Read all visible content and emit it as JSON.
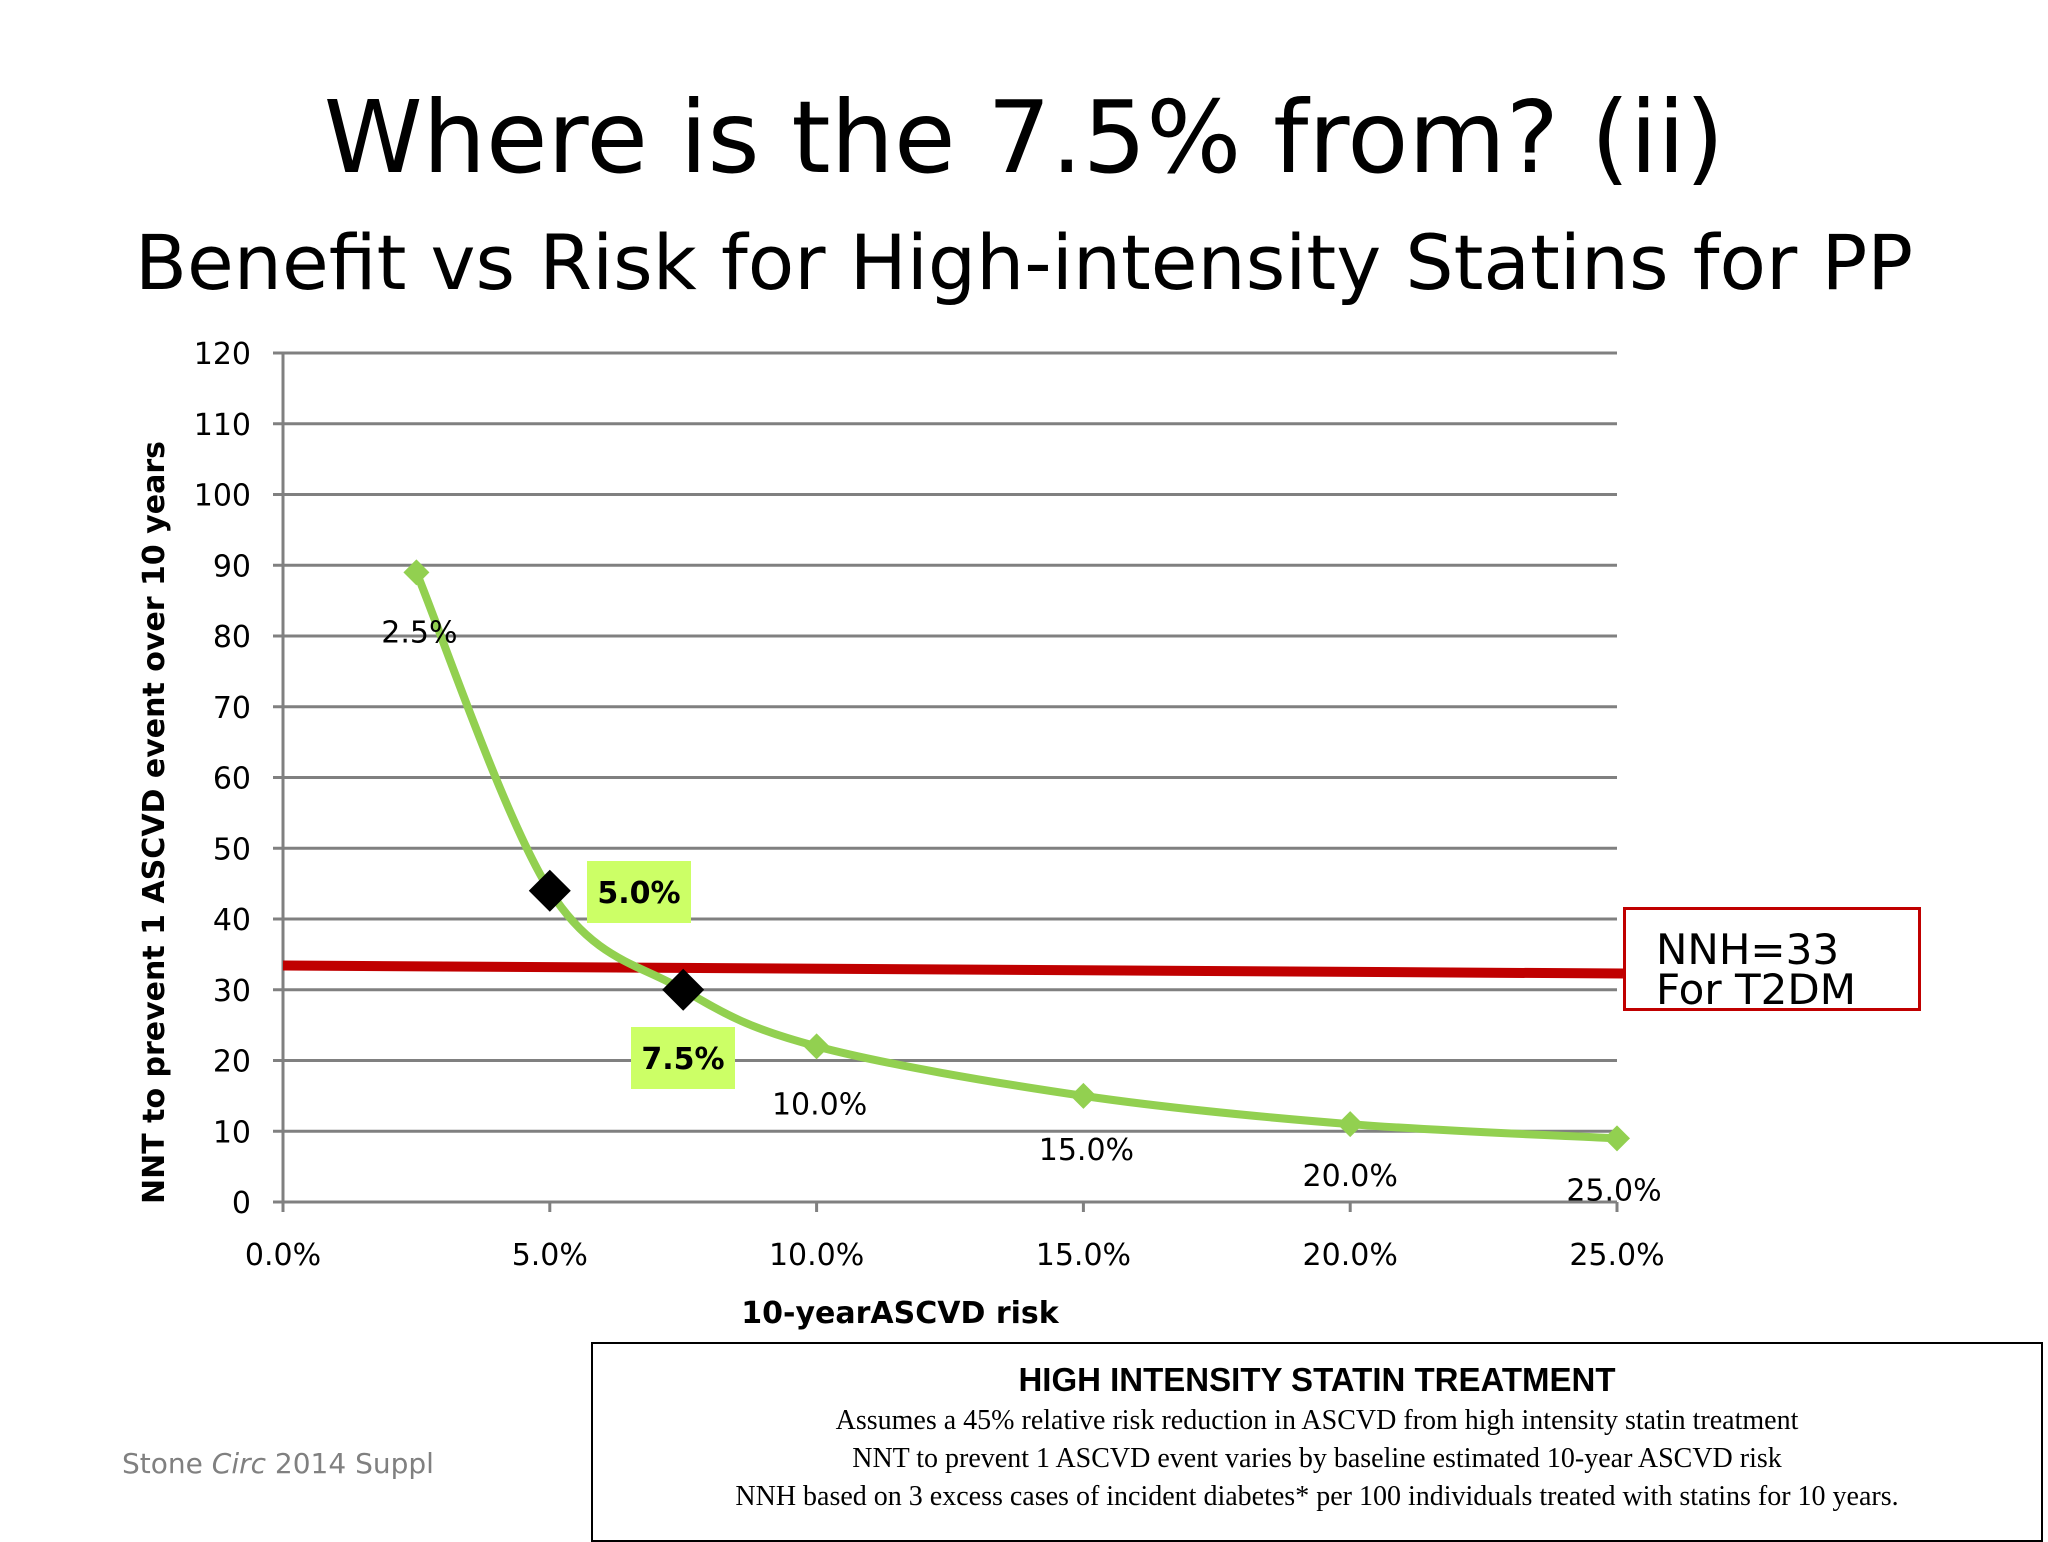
{
  "slide": {
    "title": "Where is the 7.5% from? (ii)",
    "subtitle": "Benefit vs Risk for High-intensity Statins for PP"
  },
  "chart_data": {
    "type": "line",
    "title": "",
    "xlabel": "10-yearASCVD risk",
    "ylabel": "NNT to prevent 1 ASCVD event over 10 years",
    "xlim": [
      0,
      25
    ],
    "ylim": [
      0,
      120
    ],
    "x_ticks": [
      "0.0%",
      "5.0%",
      "10.0%",
      "15.0%",
      "20.0%",
      "25.0%"
    ],
    "y_ticks": [
      "0",
      "10",
      "20",
      "30",
      "40",
      "50",
      "60",
      "70",
      "80",
      "90",
      "100",
      "110",
      "120"
    ],
    "grid": true,
    "line_color": "#92d050",
    "series": [
      {
        "x": [
          2.5,
          5.0,
          7.5,
          10.0,
          15.0,
          20.0,
          25.0
        ],
        "values": [
          89,
          44,
          30,
          22,
          15,
          11,
          9
        ],
        "point_labels": [
          "2.5%",
          "5.0%",
          "7.5%",
          "10.0%",
          "15.0%",
          "20.0%",
          "25.0%"
        ]
      }
    ],
    "highlighted_points": [
      {
        "x": 5.0,
        "y": 44,
        "label": "5.0%",
        "marker_color": "#000000",
        "label_bg": "#ccff66"
      },
      {
        "x": 7.5,
        "y": 30,
        "label": "7.5%",
        "marker_color": "#000000",
        "label_bg": "#ccff66"
      }
    ],
    "reference_line": {
      "y": 33,
      "color": "#c00000",
      "label_line1": "NNH=33",
      "label_line2": "For T2DM"
    }
  },
  "note": {
    "heading": "HIGH INTENSITY STATIN TREATMENT",
    "lines": [
      "Assumes a 45% relative risk reduction in ASCVD from high intensity statin treatment",
      "NNT to prevent 1 ASCVD event varies by baseline estimated 10-year ASCVD risk",
      "NNH based on 3 excess cases of incident diabetes* per 100 individuals treated with statins for 10 years."
    ]
  },
  "source": {
    "author": "Stone ",
    "journal": "Circ",
    "rest": " 2014 Suppl"
  }
}
